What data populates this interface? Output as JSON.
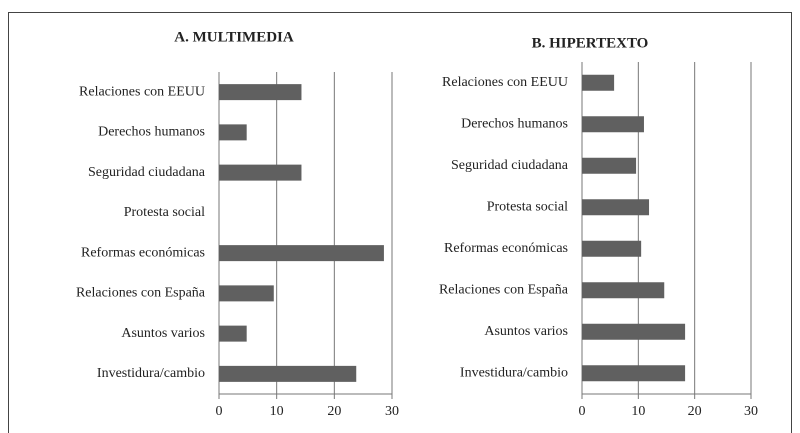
{
  "chart_data": [
    {
      "type": "bar",
      "orientation": "horizontal",
      "title": "A. MULTIMEDIA",
      "categories": [
        "Relaciones con EEUU",
        "Derechos humanos",
        "Seguridad ciudadana",
        "Protesta social",
        "Reformas económicas",
        "Relaciones con España",
        "Asuntos varios",
        "Investidura/cambio"
      ],
      "values": [
        14.3,
        4.8,
        14.3,
        0,
        28.6,
        9.5,
        4.8,
        23.8
      ],
      "color": "#606060",
      "xlim": [
        0,
        30
      ],
      "xticks": [
        0,
        10,
        20,
        30
      ],
      "grid": true
    },
    {
      "type": "bar",
      "orientation": "horizontal",
      "title": "B. HIPERTEXTO",
      "categories": [
        "Relaciones con EEUU",
        "Derechos humanos",
        "Seguridad ciudadana",
        "Protesta social",
        "Reformas económicas",
        "Relaciones con España",
        "Asuntos varios",
        "Investidura/cambio"
      ],
      "values": [
        5.7,
        11,
        9.6,
        11.9,
        10.5,
        14.6,
        18.3,
        18.3
      ],
      "color": "#606060",
      "xlim": [
        0,
        30
      ],
      "xticks": [
        0,
        10,
        20,
        30
      ],
      "grid": true
    }
  ]
}
